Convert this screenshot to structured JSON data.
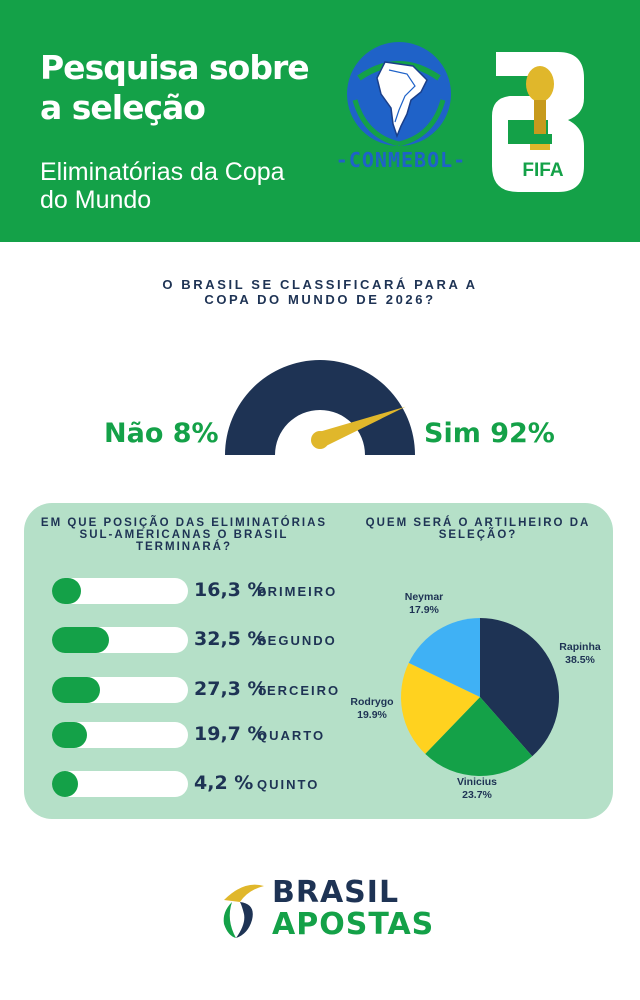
{
  "header": {
    "title": "Pesquisa sobre a seleção",
    "subtitle": "Eliminatórias da Copa do Mundo",
    "conmebol_text": "CONMEBOL",
    "fifa_text": "FIFA",
    "colors": {
      "green": "#14a148",
      "navy": "#1e3354",
      "blue": "#1f62c8",
      "gold": "#e0b72b"
    }
  },
  "chart_data": [
    {
      "type": "gauge",
      "title": "O BRASIL SE CLASSIFICARÁ PARA A COPA DO MUNDO DE 2026?",
      "categories": [
        "Não",
        "Sim"
      ],
      "values": [
        8,
        92
      ],
      "labels": [
        "Não 8%",
        "Sim 92%"
      ],
      "colors": {
        "arc": "#1e3354",
        "needle": "#e0b72b"
      }
    },
    {
      "type": "bar",
      "title": "EM QUE POSIÇÃO DAS ELIMINATÓRIAS SUL-AMERICANAS O BRASIL TERMINARÁ?",
      "rows": [
        {
          "category": "PRIMEIRO",
          "value": 16.3,
          "pct_label": "16,3 %"
        },
        {
          "category": "SEGUNDO",
          "value": 32.5,
          "pct_label": "32,5 %"
        },
        {
          "category": "TERCEIRO",
          "value": 27.3,
          "pct_label": "27,3 %"
        },
        {
          "category": "QUARTO",
          "value": 19.7,
          "pct_label": "19,7 %"
        },
        {
          "category": "QUINTO",
          "value": 4.2,
          "pct_label": "4,2 %"
        }
      ],
      "colors": {
        "fill": "#14a148",
        "track": "#ffffff"
      }
    },
    {
      "type": "pie",
      "title": "QUEM SERÁ O ARTILHEIRO DA SELEÇÃO?",
      "slices": [
        {
          "name": "Rapinha",
          "value": 38.5,
          "label": "38.5%",
          "color": "#1e3354"
        },
        {
          "name": "Vinicius",
          "value": 23.7,
          "label": "23.7%",
          "color": "#14a148"
        },
        {
          "name": "Rodrygo",
          "value": 19.9,
          "label": "19.9%",
          "color": "#ffd21f"
        },
        {
          "name": "Neymar",
          "value": 17.9,
          "label": "17.9%",
          "color": "#3fb1f5"
        }
      ]
    }
  ],
  "footer": {
    "brand_line1": "BRASIL",
    "brand_line2": "APOSTAS"
  }
}
